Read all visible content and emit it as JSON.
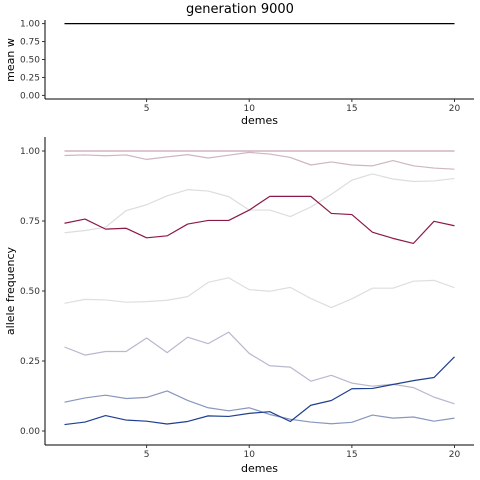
{
  "title": "generation 9000",
  "chart_data": [
    {
      "type": "line",
      "ylabel": "mean w",
      "xlabel": "demes",
      "xlim": [
        0.05,
        20.95
      ],
      "ylim": [
        -0.05,
        1.05
      ],
      "x_ticks": [
        5,
        10,
        15,
        20
      ],
      "y_ticks": [
        0.0,
        0.25,
        0.5,
        0.75,
        1.0
      ],
      "y_tick_labels": [
        "0.00",
        "0.25",
        "0.50",
        "0.75",
        "1.00"
      ],
      "grid": false,
      "x": [
        1,
        2,
        3,
        4,
        5,
        6,
        7,
        8,
        9,
        10,
        11,
        12,
        13,
        14,
        15,
        16,
        17,
        18,
        19,
        20
      ],
      "series": [
        {
          "color": "#000000",
          "values": [
            1,
            1,
            1,
            1,
            1,
            1,
            1,
            1,
            1,
            1,
            1,
            1,
            1,
            1,
            1,
            1,
            1,
            1,
            1,
            1
          ]
        }
      ]
    },
    {
      "type": "line",
      "ylabel": "allele frequency",
      "xlabel": "demes",
      "xlim": [
        0.05,
        20.95
      ],
      "ylim": [
        -0.05,
        1.05
      ],
      "x_ticks": [
        5,
        10,
        15,
        20
      ],
      "y_ticks": [
        0.0,
        0.25,
        0.5,
        0.75,
        1.0
      ],
      "y_tick_labels": [
        "0.00",
        "0.25",
        "0.50",
        "0.75",
        "1.00"
      ],
      "grid": false,
      "x": [
        1,
        2,
        3,
        4,
        5,
        6,
        7,
        8,
        9,
        10,
        11,
        12,
        13,
        14,
        15,
        16,
        17,
        18,
        19,
        20
      ],
      "series": [
        {
          "color": "#c9a3b4",
          "values": [
            1,
            1,
            1,
            1,
            1,
            1,
            1,
            1,
            1,
            1,
            1,
            1,
            1,
            1,
            1,
            1,
            1,
            1,
            1,
            1
          ]
        },
        {
          "color": "#cdb6c2",
          "values": [
            0.984,
            0.986,
            0.983,
            0.986,
            0.97,
            0.979,
            0.987,
            0.975,
            0.985,
            0.995,
            0.989,
            0.977,
            0.95,
            0.961,
            0.95,
            0.947,
            0.966,
            0.947,
            0.939,
            0.935
          ]
        },
        {
          "color": "#dddddd",
          "values": [
            0.708,
            0.716,
            0.728,
            0.787,
            0.808,
            0.84,
            0.862,
            0.857,
            0.837,
            0.789,
            0.789,
            0.766,
            0.8,
            0.845,
            0.896,
            0.918,
            0.9,
            0.891,
            0.893,
            0.902
          ]
        },
        {
          "color": "#8b1a48",
          "values": [
            0.742,
            0.757,
            0.721,
            0.724,
            0.69,
            0.697,
            0.739,
            0.752,
            0.752,
            0.789,
            0.838,
            0.838,
            0.838,
            0.777,
            0.773,
            0.71,
            0.688,
            0.67,
            0.749,
            0.733
          ]
        },
        {
          "color": "#dedede",
          "values": [
            0.456,
            0.47,
            0.468,
            0.46,
            0.462,
            0.467,
            0.48,
            0.531,
            0.547,
            0.505,
            0.499,
            0.513,
            0.473,
            0.441,
            0.472,
            0.51,
            0.51,
            0.535,
            0.538,
            0.512
          ]
        },
        {
          "color": "#b8b8cf",
          "values": [
            0.3,
            0.271,
            0.284,
            0.284,
            0.332,
            0.28,
            0.335,
            0.312,
            0.353,
            0.277,
            0.233,
            0.228,
            0.178,
            0.199,
            0.171,
            0.16,
            0.167,
            0.155,
            0.121,
            0.097
          ]
        },
        {
          "color": "#8897bf",
          "values": [
            0.103,
            0.118,
            0.128,
            0.116,
            0.12,
            0.143,
            0.109,
            0.083,
            0.072,
            0.083,
            0.059,
            0.042,
            0.032,
            0.026,
            0.031,
            0.057,
            0.046,
            0.05,
            0.035,
            0.046
          ]
        },
        {
          "color": "#1f3f8f",
          "values": [
            0.023,
            0.032,
            0.055,
            0.039,
            0.035,
            0.025,
            0.034,
            0.054,
            0.052,
            0.063,
            0.069,
            0.034,
            0.092,
            0.109,
            0.151,
            0.152,
            0.166,
            0.18,
            0.191,
            0.265
          ]
        }
      ]
    }
  ]
}
